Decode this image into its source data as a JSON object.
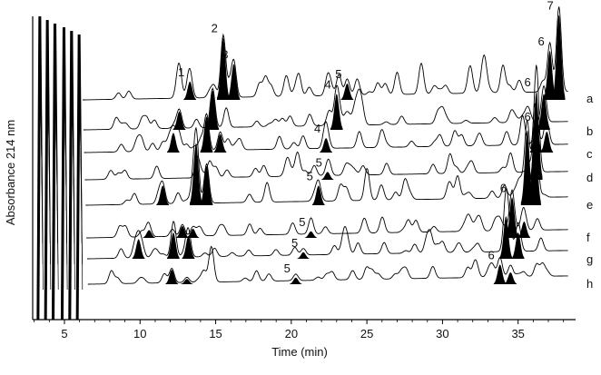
{
  "chart_data": {
    "type": "line",
    "xlabel": "Time (min)",
    "ylabel": "Absorbance 214 nm",
    "xlim": [
      2.9,
      38.8
    ],
    "xticks": [
      5,
      10,
      15,
      20,
      25,
      30,
      35
    ],
    "color": "#000000",
    "traces": [
      {
        "name": "a",
        "peaks": [
          {
            "t": 12.6,
            "h": 0.4,
            "filled": false
          },
          {
            "t": 13.3,
            "h": 0.28,
            "filled": true,
            "label": "1"
          },
          {
            "t": 15.5,
            "h": 0.95,
            "filled": true,
            "label": "2"
          },
          {
            "t": 16.2,
            "h": 0.55,
            "filled": true,
            "label": "3"
          },
          {
            "t": 18.3,
            "h": 0.3,
            "filled": false
          },
          {
            "t": 20.5,
            "h": 0.32,
            "filled": false
          },
          {
            "t": 22.4,
            "h": 0.28,
            "filled": false
          },
          {
            "t": 23.7,
            "h": 0.25,
            "filled": true,
            "label": "5"
          },
          {
            "t": 27.0,
            "h": 0.34,
            "filled": false
          },
          {
            "t": 28.6,
            "h": 0.3,
            "filled": false
          },
          {
            "t": 31.8,
            "h": 0.28,
            "filled": false
          },
          {
            "t": 32.8,
            "h": 0.38,
            "filled": false
          },
          {
            "t": 34.0,
            "h": 0.42,
            "filled": false
          },
          {
            "t": 37.1,
            "h": 0.75,
            "filled": true,
            "label": "6"
          },
          {
            "t": 37.7,
            "h": 1.3,
            "filled": true,
            "label": "7"
          }
        ]
      },
      {
        "name": "b",
        "peaks": [
          {
            "t": 12.6,
            "h": 0.28,
            "filled": true
          },
          {
            "t": 14.8,
            "h": 0.6,
            "filled": true
          },
          {
            "t": 15.7,
            "h": 0.3,
            "filled": false
          },
          {
            "t": 23.0,
            "h": 0.55,
            "filled": true,
            "label": "4"
          },
          {
            "t": 24.2,
            "h": 0.25,
            "filled": false
          },
          {
            "t": 30.0,
            "h": 0.22,
            "filled": false
          },
          {
            "t": 35.6,
            "h": 0.18,
            "filled": false
          },
          {
            "t": 36.7,
            "h": 0.55,
            "filled": true
          }
        ]
      },
      {
        "name": "c",
        "peaks": [
          {
            "t": 12.2,
            "h": 0.3,
            "filled": true
          },
          {
            "t": 14.4,
            "h": 0.55,
            "filled": true
          },
          {
            "t": 15.3,
            "h": 0.28,
            "filled": true
          },
          {
            "t": 22.3,
            "h": 0.22,
            "filled": true,
            "label": "4"
          },
          {
            "t": 24.5,
            "h": 0.25,
            "filled": false
          },
          {
            "t": 30.8,
            "h": 0.2,
            "filled": false
          },
          {
            "t": 35.3,
            "h": 0.45,
            "filled": false
          },
          {
            "t": 36.2,
            "h": 0.4,
            "filled": true,
            "label": "6"
          },
          {
            "t": 36.9,
            "h": 0.32,
            "filled": true
          }
        ]
      },
      {
        "name": "d",
        "peaks": [
          {
            "t": 13.8,
            "h": 0.32,
            "filled": false
          },
          {
            "t": 14.6,
            "h": 0.25,
            "filled": false
          },
          {
            "t": 22.4,
            "h": 0.12,
            "filled": true,
            "label": "5"
          },
          {
            "t": 30.5,
            "h": 0.3,
            "filled": false
          },
          {
            "t": 36.2,
            "h": 1.35,
            "filled": true,
            "label": "6"
          },
          {
            "t": 34.5,
            "h": 0.3,
            "filled": false
          }
        ]
      },
      {
        "name": "e",
        "peaks": [
          {
            "t": 11.5,
            "h": 0.3,
            "filled": true
          },
          {
            "t": 13.7,
            "h": 0.95,
            "filled": true
          },
          {
            "t": 14.4,
            "h": 0.6,
            "filled": true
          },
          {
            "t": 18.4,
            "h": 0.3,
            "filled": false
          },
          {
            "t": 21.8,
            "h": 0.3,
            "filled": true,
            "label": "5"
          },
          {
            "t": 25.0,
            "h": 0.35,
            "filled": false
          },
          {
            "t": 31.0,
            "h": 0.35,
            "filled": false
          },
          {
            "t": 35.6,
            "h": 1.15,
            "filled": true
          },
          {
            "t": 36.1,
            "h": 1.35,
            "filled": true
          }
        ]
      },
      {
        "name": "f",
        "peaks": [
          {
            "t": 10.6,
            "h": 0.12,
            "filled": true
          },
          {
            "t": 12.8,
            "h": 0.18,
            "filled": true
          },
          {
            "t": 13.5,
            "h": 0.14,
            "filled": true
          },
          {
            "t": 21.3,
            "h": 0.1,
            "filled": true,
            "label": "5"
          },
          {
            "t": 26.0,
            "h": 0.14,
            "filled": false
          },
          {
            "t": 34.6,
            "h": 0.62,
            "filled": true,
            "label": "6"
          },
          {
            "t": 35.4,
            "h": 0.25,
            "filled": true
          }
        ]
      },
      {
        "name": "g",
        "peaks": [
          {
            "t": 9.9,
            "h": 0.3,
            "filled": true
          },
          {
            "t": 12.2,
            "h": 0.4,
            "filled": true
          },
          {
            "t": 13.2,
            "h": 0.35,
            "filled": true
          },
          {
            "t": 20.8,
            "h": 0.1,
            "filled": true,
            "label": "5"
          },
          {
            "t": 23.5,
            "h": 0.3,
            "filled": false
          },
          {
            "t": 29.2,
            "h": 0.28,
            "filled": false
          },
          {
            "t": 34.2,
            "h": 0.65,
            "filled": true
          },
          {
            "t": 35.0,
            "h": 0.4,
            "filled": true
          }
        ]
      },
      {
        "name": "h",
        "peaks": [
          {
            "t": 12.1,
            "h": 0.22,
            "filled": true
          },
          {
            "t": 13.1,
            "h": 0.08,
            "filled": true
          },
          {
            "t": 20.3,
            "h": 0.1,
            "filled": true,
            "label": "5"
          },
          {
            "t": 33.8,
            "h": 0.3,
            "filled": true,
            "label": "6"
          },
          {
            "t": 34.5,
            "h": 0.18,
            "filled": true
          }
        ]
      }
    ]
  }
}
